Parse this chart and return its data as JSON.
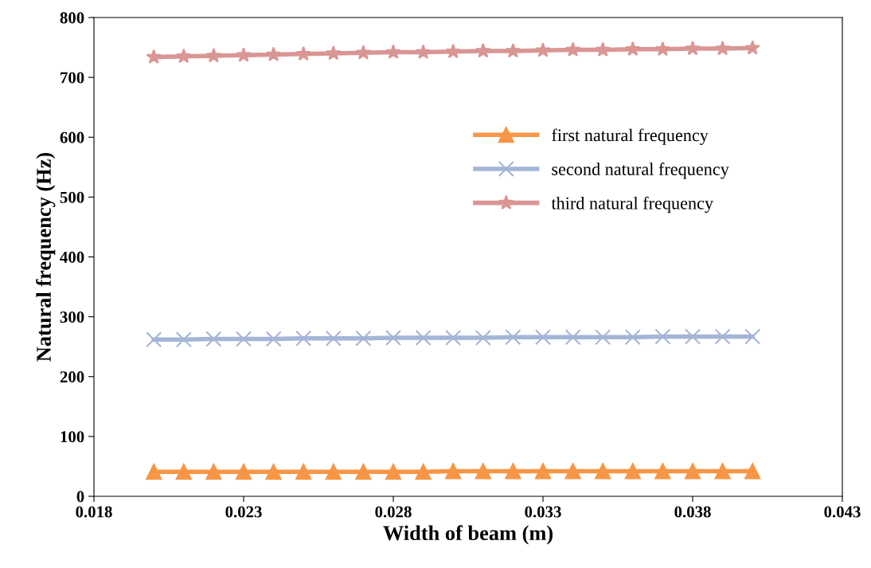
{
  "chart_data": {
    "type": "line",
    "xlabel": "Width of beam (m)",
    "ylabel": "Natural frequency (Hz)",
    "x": [
      0.02,
      0.021,
      0.022,
      0.023,
      0.024,
      0.025,
      0.026,
      0.027,
      0.028,
      0.029,
      0.03,
      0.031,
      0.032,
      0.033,
      0.034,
      0.035,
      0.036,
      0.037,
      0.038,
      0.039,
      0.04
    ],
    "series": [
      {
        "name": "first natural frequency",
        "color": "#f79646",
        "marker": "triangle",
        "values": [
          41,
          41,
          41,
          41,
          41,
          41,
          41,
          41,
          41,
          41,
          42,
          42,
          42,
          42,
          42,
          42,
          42,
          42,
          42,
          42,
          42
        ]
      },
      {
        "name": "second natural frequency",
        "color": "#a5b5d6",
        "marker": "cross",
        "values": [
          262,
          262,
          263,
          263,
          263,
          264,
          264,
          264,
          265,
          265,
          265,
          265,
          266,
          266,
          266,
          266,
          266,
          267,
          267,
          267,
          267
        ]
      },
      {
        "name": "third natural frequency",
        "color": "#d99694",
        "marker": "star",
        "values": [
          734,
          735,
          736,
          737,
          738,
          739,
          740,
          741,
          742,
          742,
          743,
          744,
          744,
          745,
          746,
          746,
          747,
          747,
          748,
          748,
          749
        ]
      }
    ],
    "xlim": [
      0.018,
      0.043
    ],
    "xticks": [
      {
        "value": 0.018,
        "label": "0.018"
      },
      {
        "value": 0.023,
        "label": "0.023"
      },
      {
        "value": 0.028,
        "label": "0.028"
      },
      {
        "value": 0.033,
        "label": "0.033"
      },
      {
        "value": 0.038,
        "label": "0.038"
      },
      {
        "value": 0.043,
        "label": "0.043"
      }
    ],
    "ylim": [
      0,
      800
    ],
    "yticks": [
      0,
      100,
      200,
      300,
      400,
      500,
      600,
      700,
      800
    ],
    "grid": false,
    "legend": "right",
    "line_style": "solid"
  }
}
